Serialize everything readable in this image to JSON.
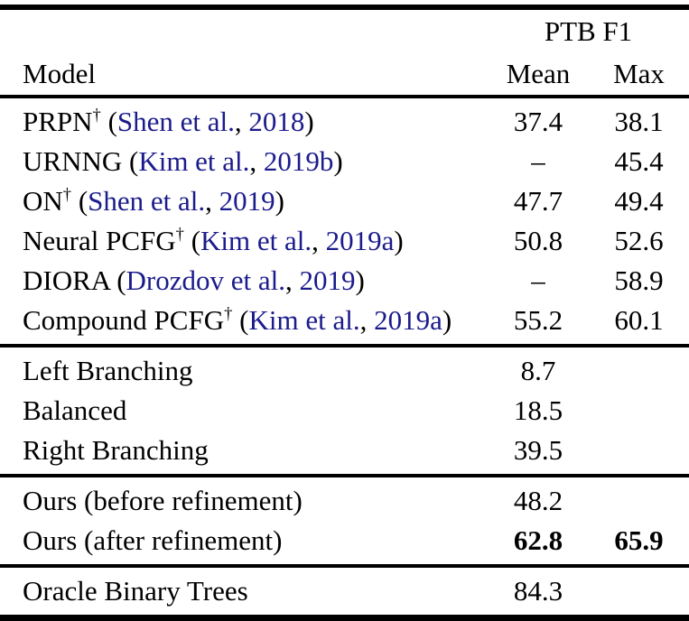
{
  "header": {
    "group_label": "PTB F1",
    "model_label": "Model",
    "mean_label": "Mean",
    "max_label": "Max"
  },
  "colors": {
    "citation": "#1b1b8c",
    "text": "#000000",
    "background": "#ffffff",
    "rule": "#000000"
  },
  "sections": [
    {
      "name": "cited_models",
      "rows": [
        {
          "model": "PRPN",
          "dagger": true,
          "cite_author": "Shen et al.",
          "cite_year": "2018",
          "mean": "37.4",
          "max": "38.1",
          "bold_values": false
        },
        {
          "model": "URNNG",
          "dagger": false,
          "cite_author": "Kim et al.",
          "cite_year": "2019b",
          "mean": "–",
          "max": "45.4",
          "bold_values": false
        },
        {
          "model": "ON",
          "dagger": true,
          "cite_author": "Shen et al.",
          "cite_year": "2019",
          "mean": "47.7",
          "max": "49.4",
          "bold_values": false
        },
        {
          "model": "Neural PCFG",
          "dagger": true,
          "cite_author": "Kim et al.",
          "cite_year": "2019a",
          "mean": "50.8",
          "max": "52.6",
          "bold_values": false
        },
        {
          "model": "DIORA",
          "dagger": false,
          "cite_author": "Drozdov et al.",
          "cite_year": "2019",
          "mean": "–",
          "max": "58.9",
          "bold_values": false
        },
        {
          "model": "Compound PCFG",
          "dagger": true,
          "cite_author": "Kim et al.",
          "cite_year": "2019a",
          "mean": "55.2",
          "max": "60.1",
          "bold_values": false
        }
      ]
    },
    {
      "name": "trivial_baselines",
      "rows": [
        {
          "model": "Left Branching",
          "dagger": false,
          "mean": "8.7",
          "max": "",
          "bold_values": false
        },
        {
          "model": "Balanced",
          "dagger": false,
          "mean": "18.5",
          "max": "",
          "bold_values": false
        },
        {
          "model": "Right Branching",
          "dagger": false,
          "mean": "39.5",
          "max": "",
          "bold_values": false
        }
      ]
    },
    {
      "name": "ours",
      "rows": [
        {
          "model": "Ours (before refinement)",
          "dagger": false,
          "mean": "48.2",
          "max": "",
          "bold_values": false
        },
        {
          "model": "Ours (after refinement)",
          "dagger": false,
          "mean": "62.8",
          "max": "65.9",
          "bold_values": true
        }
      ]
    },
    {
      "name": "oracle",
      "rows": [
        {
          "model": "Oracle Binary Trees",
          "dagger": false,
          "mean": "84.3",
          "max": "",
          "bold_values": false
        }
      ]
    }
  ]
}
